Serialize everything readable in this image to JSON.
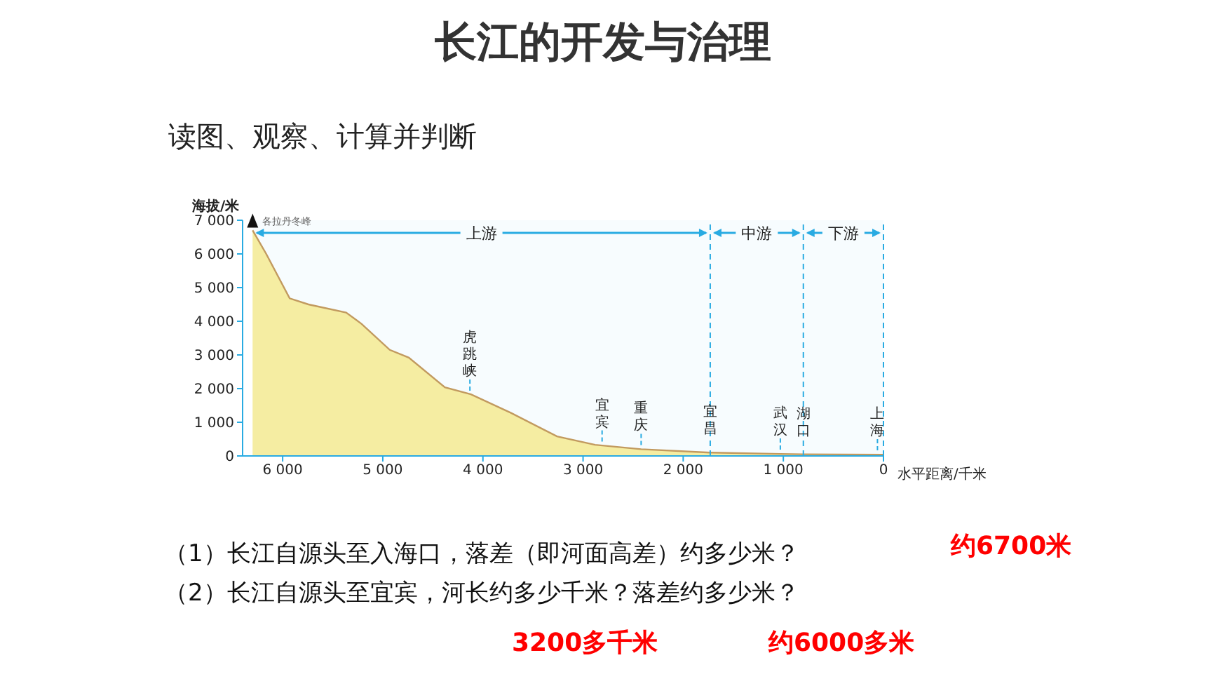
{
  "chart_data": {
    "type": "area",
    "title": "长江的开发与治理",
    "subtitle": "读图、观察、计算并判断",
    "xlabel": "水平距离/千米",
    "ylabel": "海拔/米",
    "x": [
      6300,
      6164,
      5930,
      5742,
      5366,
      5211,
      4930,
      4740,
      4380,
      4120,
      3720,
      3260,
      2880,
      2420,
      1730,
      1030,
      800,
      0
    ],
    "series": [
      {
        "color": "#fdf0a0",
        "values": [
          6700,
          6000,
          4680,
          4500,
          4260,
          3920,
          3150,
          2920,
          2040,
          1830,
          1280,
          580,
          330,
          200,
          100,
          60,
          50,
          40
        ]
      }
    ],
    "xlim": [
      6400,
      0
    ],
    "ylim": [
      0,
      7000
    ],
    "xticks": [
      {
        "value": 6000,
        "label": "6 000"
      },
      {
        "value": 5000,
        "label": "5 000"
      },
      {
        "value": 4000,
        "label": "4 000"
      },
      {
        "value": 3000,
        "label": "3 000"
      },
      {
        "value": 2000,
        "label": "2 000"
      },
      {
        "value": 1000,
        "label": "1 000"
      },
      0
    ],
    "yticks": [
      0,
      {
        "value": 1000,
        "label": "1 000"
      },
      {
        "value": 2000,
        "label": "2 000"
      },
      {
        "value": 3000,
        "label": "3 000"
      },
      {
        "value": 4000,
        "label": "4 000"
      },
      {
        "value": 5000,
        "label": "5 000"
      },
      {
        "value": 6000,
        "label": "6 000"
      },
      {
        "value": 7000,
        "label": "7 000"
      }
    ],
    "grid": false,
    "bands": [
      {
        "axis": "x",
        "from": 6300,
        "to": 1730,
        "label": "上游",
        "color": "#29abe2"
      },
      {
        "axis": "x",
        "from": 1730,
        "to": 800,
        "label": "中游",
        "color": "#29abe2"
      },
      {
        "axis": "x",
        "from": 800,
        "to": 0,
        "label": "下游",
        "color": "#29abe2"
      }
    ],
    "ref_lines": [
      {
        "axis": "x",
        "value": 1730,
        "color": "#29abe2",
        "line_style": "dashed"
      },
      {
        "axis": "x",
        "value": 800,
        "color": "#29abe2",
        "line_style": "dashed"
      },
      {
        "axis": "x",
        "value": 0,
        "color": "#29abe2",
        "line_style": "dashed"
      }
    ],
    "annotations": [
      {
        "text": "各拉丹冬峰",
        "x": 6300,
        "y": 6700
      },
      {
        "text": "虎跳峡",
        "x": 4130,
        "y": 1810
      },
      {
        "text": "宜宾",
        "x": 2810,
        "y": 300
      },
      {
        "text": "重庆",
        "x": 2420,
        "y": 200
      },
      {
        "text": "宜昌",
        "x": 1730,
        "y": 100
      },
      {
        "text": "武汉",
        "x": 1030,
        "y": 60
      },
      {
        "text": "湖口",
        "x": 800,
        "y": 50
      },
      {
        "text": "上海",
        "x": 60,
        "y": 40
      },
      "（1）长江自源头至入海口，落差（即河面高差）约多少米？",
      "（2）长江自源头至宜宾，河长约多少千米？落差约多少米？",
      "约6700米",
      "3200多千米",
      "约6000多米"
    ]
  }
}
